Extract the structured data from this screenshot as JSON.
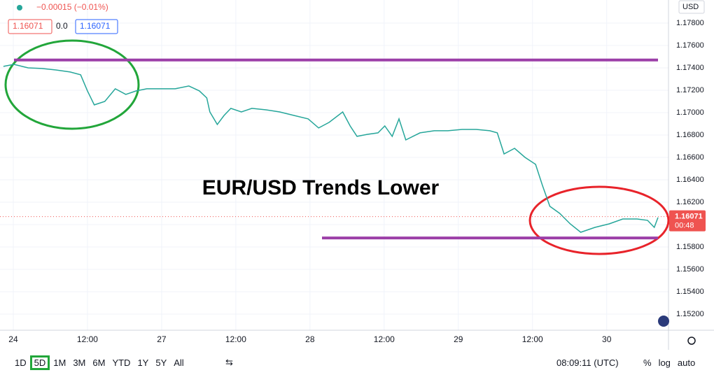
{
  "chart_data": {
    "type": "line",
    "title": "EUR/USD Trends Lower",
    "header": {
      "change": "−0.00015 (−0.01%)",
      "bid": "1.16071",
      "spread": "0.0",
      "ask": "1.16071"
    },
    "currency": "USD",
    "x": [
      -1.6,
      0.1,
      2.4,
      4.6,
      6.9,
      9.2,
      10.9,
      12,
      13.1,
      14.8,
      16.5,
      18.2,
      19.9,
      21.6,
      23.9,
      26.2,
      28.4,
      30.1,
      31.3,
      31.8,
      33,
      34.1,
      35.2,
      36.9,
      38.6,
      40.9,
      43.1,
      45.4,
      47.7,
      49.4,
      51.1,
      53.3,
      54.5,
      55.6,
      57.3,
      59,
      60.1,
      61.3,
      62.4,
      63.5,
      65.8,
      68.1,
      70.3,
      72.6,
      74.9,
      77.1,
      78.3,
      79.4,
      81.1,
      82.8,
      84.5,
      85.6,
      86.8,
      88.4,
      90.1,
      91.8,
      94.1,
      96.4,
      98.6,
      100.9,
      102.6,
      103.7,
      104.3
    ],
    "series": [
      {
        "name": "EURUSD",
        "color": "#26a69a",
        "values": [
          1.17413,
          1.17431,
          1.174,
          1.17394,
          1.17381,
          1.17363,
          1.17338,
          1.17194,
          1.17069,
          1.171,
          1.17213,
          1.17163,
          1.17194,
          1.17213,
          1.17213,
          1.17213,
          1.17238,
          1.17194,
          1.17131,
          1.17006,
          1.16894,
          1.16975,
          1.17038,
          1.17006,
          1.17038,
          1.17025,
          1.17006,
          1.16975,
          1.16944,
          1.16863,
          1.16913,
          1.17006,
          1.16881,
          1.16788,
          1.16806,
          1.16819,
          1.16881,
          1.16788,
          1.16944,
          1.16756,
          1.16819,
          1.16838,
          1.16838,
          1.1685,
          1.1685,
          1.16838,
          1.16819,
          1.16631,
          1.16681,
          1.166,
          1.16538,
          1.1635,
          1.16163,
          1.161,
          1.16006,
          1.15931,
          1.15975,
          1.16006,
          1.1605,
          1.1605,
          1.16038,
          1.15975,
          1.16063
        ]
      }
    ],
    "xlim": [
      -2.15,
      106
    ],
    "xticks": [
      {
        "value": 0,
        "label": "24"
      },
      {
        "value": 12,
        "label": "12:00"
      },
      {
        "value": 24,
        "label": "27"
      },
      {
        "value": 36,
        "label": "12:00"
      },
      {
        "value": 48,
        "label": "28"
      },
      {
        "value": 60,
        "label": "12:00"
      },
      {
        "value": 72,
        "label": "29"
      },
      {
        "value": 84,
        "label": "12:00"
      },
      {
        "value": 96,
        "label": "30"
      }
    ],
    "ylim": [
      1.15056,
      1.18006
    ],
    "yticks": [
      {
        "value": 1.152,
        "label": "1.15200"
      },
      {
        "value": 1.154,
        "label": "1.15400"
      },
      {
        "value": 1.156,
        "label": "1.15600"
      },
      {
        "value": 1.158,
        "label": "1.15800"
      },
      {
        "value": 1.16,
        "label": "1.16000"
      },
      {
        "value": 1.162,
        "label": "1.16200"
      },
      {
        "value": 1.164,
        "label": "1.16400"
      },
      {
        "value": 1.166,
        "label": "1.16600"
      },
      {
        "value": 1.168,
        "label": "1.16800"
      },
      {
        "value": 1.17,
        "label": "1.17000"
      },
      {
        "value": 1.172,
        "label": "1.17200"
      },
      {
        "value": 1.174,
        "label": "1.17400"
      },
      {
        "value": 1.176,
        "label": "1.17600"
      },
      {
        "value": 1.178,
        "label": "1.17800"
      }
    ],
    "grid": true,
    "levels": [
      1.1747,
      1.1588
    ],
    "level_color": "#9c3fa8",
    "last_price": {
      "value": 1.16071,
      "label": "1.16071"
    },
    "countdown": "00:48",
    "ranges": [
      "1D",
      "5D",
      "1M",
      "3M",
      "6M",
      "YTD",
      "1Y",
      "5Y",
      "All"
    ],
    "clock": "08:09:11 (UTC)",
    "options": [
      "%",
      "log",
      "auto"
    ]
  }
}
